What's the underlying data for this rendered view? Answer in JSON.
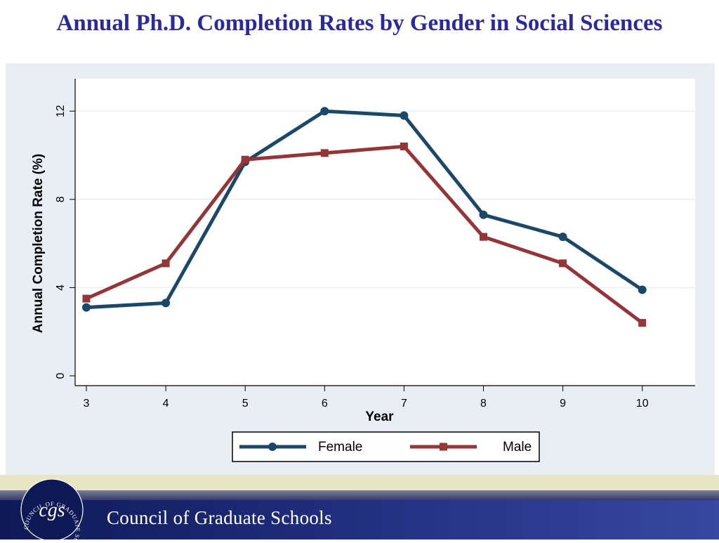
{
  "slide": {
    "title": "Annual Ph.D. Completion Rates by Gender in Social Sciences"
  },
  "footer": {
    "org_name": "Council of Graduate Schools",
    "logo_monogram": "cgs",
    "logo_ring_text": "COUNCIL OF GRADUATE SCHOOLS"
  },
  "colors": {
    "title": "#2a2a9e",
    "female": "#1b4868",
    "male": "#943537",
    "panel": "#e8eef3"
  },
  "chart_data": {
    "type": "line",
    "title": "Annual Ph.D. Completion Rates by Gender in Social Sciences",
    "xlabel": "Year",
    "ylabel": "Annual Completion Rate (%)",
    "x": [
      3,
      4,
      5,
      6,
      7,
      8,
      9,
      10
    ],
    "xticks": [
      "3",
      "4",
      "5",
      "6",
      "7",
      "8",
      "9",
      "10"
    ],
    "yticks": [
      "0",
      "4",
      "8",
      "12"
    ],
    "ylim": [
      0,
      13.5
    ],
    "grid": true,
    "legend_position": "bottom",
    "series": [
      {
        "name": "Female",
        "marker": "circle",
        "color": "#1b4868",
        "values": [
          3.1,
          3.3,
          9.7,
          12.0,
          11.8,
          7.3,
          6.3,
          3.9
        ]
      },
      {
        "name": "Male",
        "marker": "square",
        "color": "#943537",
        "values": [
          3.5,
          5.1,
          9.8,
          10.1,
          10.4,
          6.3,
          5.1,
          2.4
        ]
      }
    ]
  }
}
